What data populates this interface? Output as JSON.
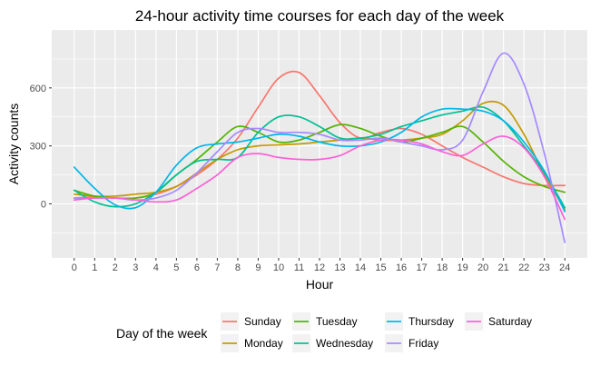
{
  "chart_data": {
    "type": "line",
    "title": "24-hour activity time courses for each day of the week",
    "xlabel": "Hour",
    "ylabel": "Activity counts",
    "x_ticks": [
      "0",
      "1",
      "2",
      "3",
      "4",
      "5",
      "6",
      "7",
      "8",
      "9",
      "10",
      "11",
      "12",
      "13",
      "14",
      "15",
      "16",
      "17",
      "18",
      "19",
      "20",
      "21",
      "22",
      "23",
      "24"
    ],
    "y_ticks": [
      "0",
      "300",
      "600"
    ],
    "xlim": [
      -1.1,
      25.1
    ],
    "ylim": [
      -280,
      900
    ],
    "grid": true,
    "background": "#ebebeb",
    "legend_title": "Day of the week",
    "legend_position": "bottom",
    "x": [
      0,
      1,
      2,
      3,
      4,
      5,
      6,
      7,
      8,
      9,
      10,
      11,
      12,
      13,
      14,
      15,
      16,
      17,
      18,
      19,
      20,
      21,
      22,
      23,
      24
    ],
    "series": [
      {
        "name": "Sunday",
        "color": "#f8766d",
        "values": [
          30,
          35,
          30,
          30,
          50,
          90,
          150,
          230,
          340,
          500,
          650,
          680,
          560,
          420,
          340,
          370,
          390,
          360,
          300,
          240,
          190,
          140,
          105,
          95,
          95
        ]
      },
      {
        "name": "Monday",
        "color": "#c49a00",
        "values": [
          50,
          40,
          40,
          50,
          60,
          90,
          160,
          230,
          280,
          300,
          305,
          310,
          320,
          330,
          340,
          330,
          330,
          340,
          360,
          430,
          520,
          510,
          360,
          150,
          -30
        ]
      },
      {
        "name": "Tuesday",
        "color": "#53b400",
        "values": [
          70,
          40,
          30,
          30,
          60,
          150,
          230,
          320,
          400,
          370,
          320,
          330,
          370,
          410,
          390,
          350,
          320,
          340,
          370,
          400,
          320,
          220,
          140,
          90,
          60
        ]
      },
      {
        "name": "Wednesday",
        "color": "#00c094",
        "values": [
          70,
          10,
          -15,
          0,
          60,
          150,
          220,
          230,
          240,
          370,
          450,
          450,
          400,
          340,
          340,
          360,
          400,
          430,
          460,
          480,
          500,
          430,
          300,
          160,
          -20
        ]
      },
      {
        "name": "Thursday",
        "color": "#00b6eb",
        "values": [
          190,
          80,
          -5,
          -20,
          60,
          200,
          290,
          310,
          320,
          340,
          360,
          350,
          320,
          300,
          300,
          320,
          370,
          450,
          490,
          490,
          480,
          430,
          320,
          170,
          -40
        ]
      },
      {
        "name": "Friday",
        "color": "#a58aff",
        "values": [
          30,
          30,
          30,
          20,
          30,
          70,
          160,
          270,
          370,
          390,
          370,
          370,
          360,
          330,
          330,
          340,
          320,
          300,
          280,
          330,
          580,
          780,
          620,
          260,
          -200
        ]
      },
      {
        "name": "Saturday",
        "color": "#fb61d7",
        "values": [
          20,
          30,
          30,
          20,
          10,
          20,
          80,
          150,
          240,
          260,
          240,
          230,
          230,
          250,
          300,
          330,
          330,
          310,
          270,
          250,
          310,
          350,
          290,
          140,
          -80
        ]
      }
    ]
  }
}
